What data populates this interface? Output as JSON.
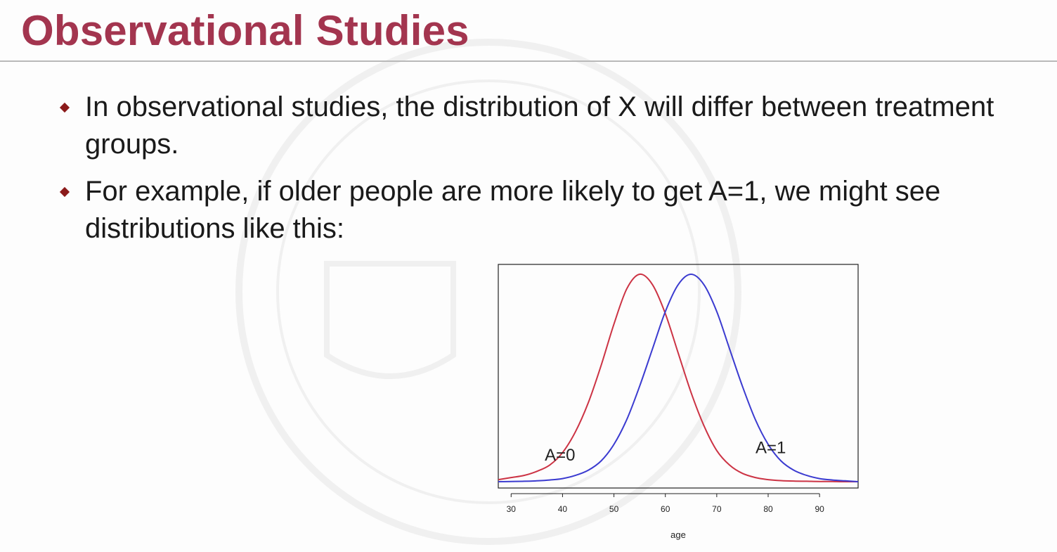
{
  "slide": {
    "title": "Observational Studies",
    "title_color": "#a3354f",
    "bullet_color": "#8b1a1a",
    "bullets": [
      "In observational studies, the distribution of X will differ between treatment groups.",
      "For example, if older people are more likely to get A=1, we might see distributions like this:"
    ]
  },
  "chart_data": {
    "type": "line",
    "xlabel": "age",
    "ylabel": "",
    "xlim": [
      27.5,
      97.5
    ],
    "x_ticks": [
      30,
      40,
      50,
      60,
      70,
      80,
      90
    ],
    "grid": false,
    "y_axis_shown": false,
    "series": [
      {
        "name": "A=0",
        "color": "#cc3344",
        "x": [
          27.5,
          30,
          32.5,
          35,
          37.5,
          40,
          42.5,
          45,
          47.5,
          50,
          52.5,
          55,
          57.5,
          60,
          62.5,
          65,
          67.5,
          70,
          72.5,
          75,
          77.5,
          80,
          82.5,
          85,
          87.5,
          90,
          92.5,
          95,
          97.5
        ],
        "y": [
          0.01,
          0.02,
          0.03,
          0.05,
          0.08,
          0.14,
          0.24,
          0.38,
          0.56,
          0.76,
          0.93,
          1.0,
          0.95,
          0.81,
          0.62,
          0.43,
          0.27,
          0.15,
          0.08,
          0.04,
          0.02,
          0.01,
          0.005,
          0.003,
          0.002,
          0.001,
          0.001,
          0.0,
          0.0
        ]
      },
      {
        "name": "A=1",
        "color": "#3b3bd0",
        "x": [
          27.5,
          30,
          32.5,
          35,
          37.5,
          40,
          42.5,
          45,
          47.5,
          50,
          52.5,
          55,
          57.5,
          60,
          62.5,
          65,
          67.5,
          70,
          72.5,
          75,
          77.5,
          80,
          82.5,
          85,
          87.5,
          90,
          92.5,
          95,
          97.5
        ],
        "y": [
          0.0,
          0.001,
          0.002,
          0.004,
          0.008,
          0.015,
          0.03,
          0.055,
          0.1,
          0.18,
          0.3,
          0.46,
          0.64,
          0.82,
          0.95,
          1.0,
          0.95,
          0.82,
          0.64,
          0.46,
          0.3,
          0.18,
          0.1,
          0.055,
          0.03,
          0.015,
          0.008,
          0.004,
          0.0
        ]
      }
    ],
    "annotations": [
      {
        "text": "A=0",
        "series": "A=0",
        "x": 39.5
      },
      {
        "text": "A=1",
        "series": "A=1",
        "x": 80.5
      }
    ]
  }
}
